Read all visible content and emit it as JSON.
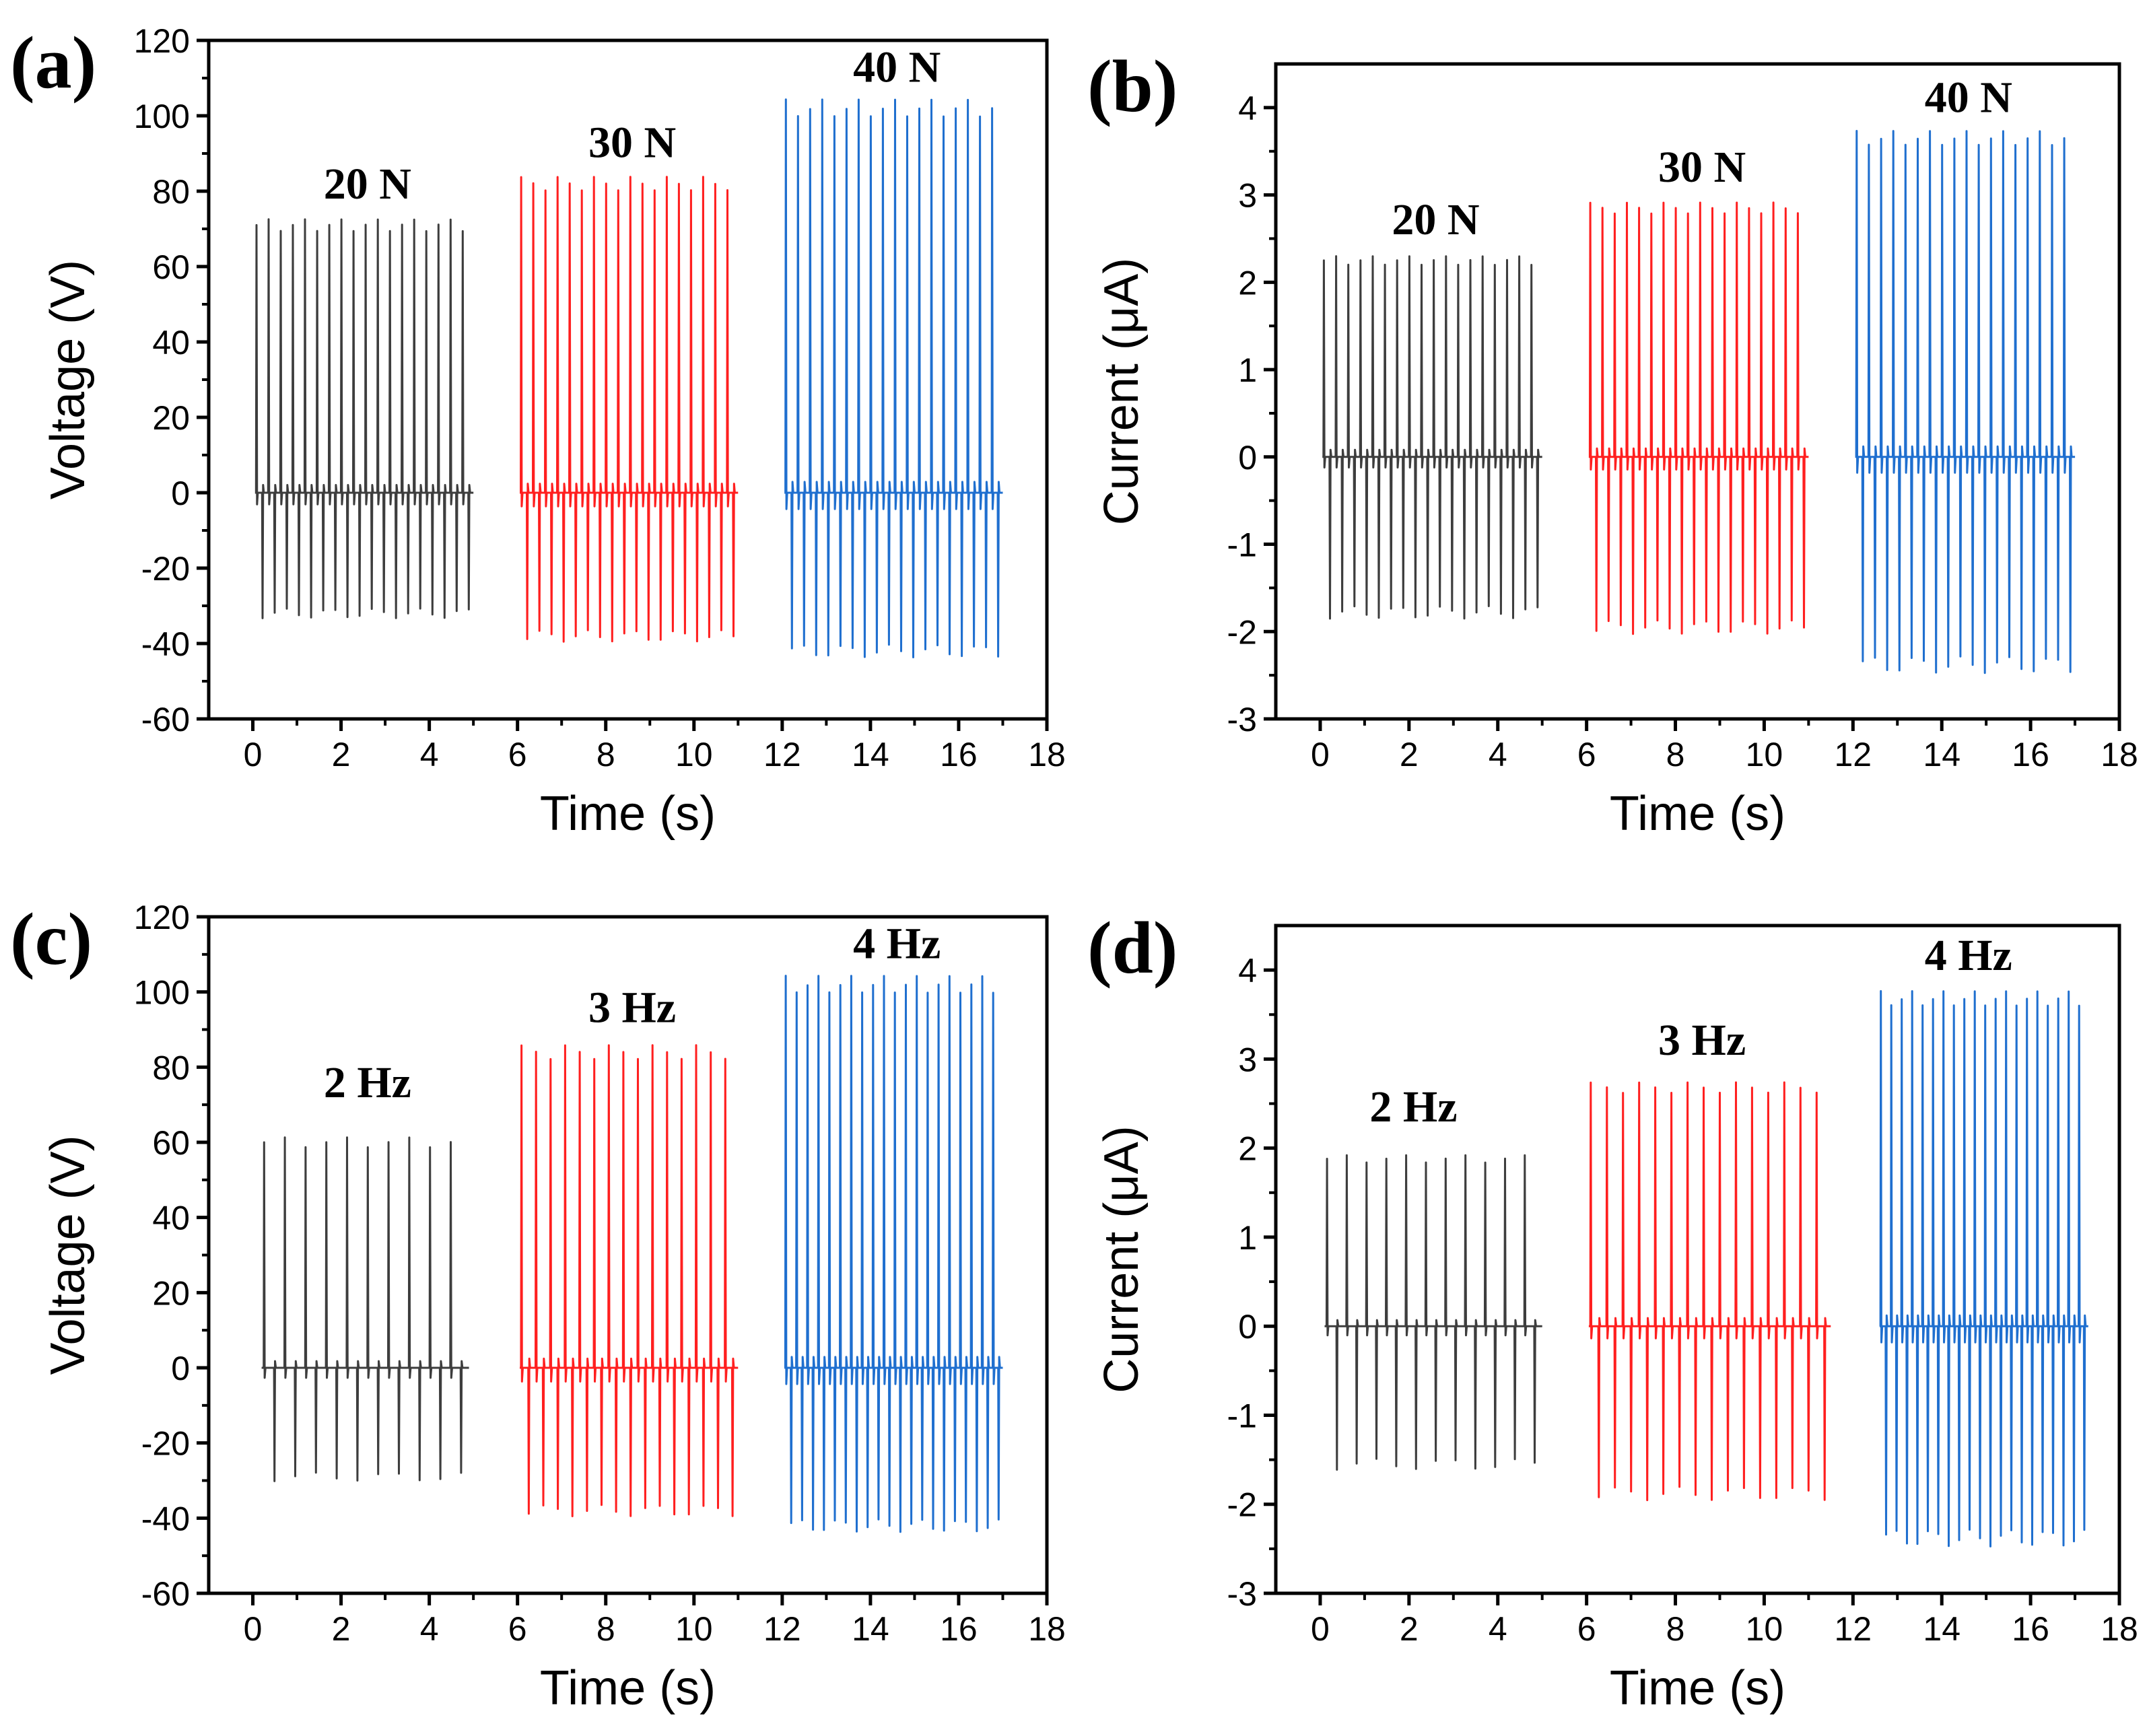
{
  "chart_data": [
    {
      "panel_label": "(a)",
      "type": "line",
      "xlabel": "Time (s)",
      "ylabel": "Voltage (V)",
      "xlim": [
        -1,
        18
      ],
      "ylim": [
        -60,
        120
      ],
      "xticks": [
        0,
        2,
        4,
        6,
        8,
        10,
        12,
        14,
        16,
        18
      ],
      "yticks": [
        -60,
        -40,
        -20,
        0,
        20,
        40,
        60,
        80,
        100,
        120
      ],
      "series": [
        {
          "name": "20 N",
          "color": "#3d3d3d",
          "t_start": 0.05,
          "t_end": 5.0,
          "pulses": 18,
          "peak": 71,
          "trough": -32,
          "peak_label_x": 2.6,
          "peak_label_y": 78
        },
        {
          "name": "30 N",
          "color": "#ff1f1f",
          "t_start": 6.05,
          "t_end": 11.0,
          "pulses": 18,
          "peak": 82,
          "trough": -38,
          "peak_label_x": 8.6,
          "peak_label_y": 89
        },
        {
          "name": "40 N",
          "color": "#1f6fcf",
          "t_start": 12.05,
          "t_end": 17.0,
          "pulses": 18,
          "peak": 102,
          "trough": -42,
          "peak_label_x": 14.6,
          "peak_label_y": 109
        }
      ]
    },
    {
      "panel_label": "(b)",
      "type": "line",
      "xlabel": "Time (s)",
      "ylabel": "Current (μA)",
      "xlim": [
        -1,
        18
      ],
      "ylim": [
        -3,
        4.5
      ],
      "xticks": [
        0,
        2,
        4,
        6,
        8,
        10,
        12,
        14,
        16,
        18
      ],
      "yticks": [
        -3,
        -2,
        -1,
        0,
        1,
        2,
        3,
        4
      ],
      "series": [
        {
          "name": "20 N",
          "color": "#3d3d3d",
          "t_start": 0.05,
          "t_end": 5.0,
          "pulses": 18,
          "peak": 2.25,
          "trough": -1.78,
          "peak_label_x": 2.6,
          "peak_label_y": 2.55
        },
        {
          "name": "30 N",
          "color": "#ff1f1f",
          "t_start": 6.05,
          "t_end": 11.0,
          "pulses": 18,
          "peak": 2.85,
          "trough": -1.95,
          "peak_label_x": 8.6,
          "peak_label_y": 3.15
        },
        {
          "name": "40 N",
          "color": "#1f6fcf",
          "t_start": 12.05,
          "t_end": 17.0,
          "pulses": 18,
          "peak": 3.65,
          "trough": -2.38,
          "peak_label_x": 14.6,
          "peak_label_y": 3.95
        }
      ]
    },
    {
      "panel_label": "(c)",
      "type": "line",
      "xlabel": "Time (s)",
      "ylabel": "Voltage (V)",
      "xlim": [
        -1,
        18
      ],
      "ylim": [
        -60,
        120
      ],
      "xticks": [
        0,
        2,
        4,
        6,
        8,
        10,
        12,
        14,
        16,
        18
      ],
      "yticks": [
        -60,
        -40,
        -20,
        0,
        20,
        40,
        60,
        80,
        100,
        120
      ],
      "series": [
        {
          "name": "2 Hz",
          "color": "#3d3d3d",
          "t_start": 0.2,
          "t_end": 4.9,
          "pulses": 10,
          "peak": 60,
          "trough": -29,
          "peak_label_x": 2.6,
          "peak_label_y": 72
        },
        {
          "name": "3 Hz",
          "color": "#ff1f1f",
          "t_start": 6.05,
          "t_end": 11.0,
          "pulses": 15,
          "peak": 84,
          "trough": -38,
          "peak_label_x": 8.6,
          "peak_label_y": 92
        },
        {
          "name": "4 Hz",
          "color": "#1f6fcf",
          "t_start": 12.05,
          "t_end": 17.0,
          "pulses": 20,
          "peak": 102,
          "trough": -42,
          "peak_label_x": 14.6,
          "peak_label_y": 109
        }
      ]
    },
    {
      "panel_label": "(d)",
      "type": "line",
      "xlabel": "Time (s)",
      "ylabel": "Current (μA)",
      "xlim": [
        -1,
        18
      ],
      "ylim": [
        -3,
        4.5
      ],
      "xticks": [
        0,
        2,
        4,
        6,
        8,
        10,
        12,
        14,
        16,
        18
      ],
      "yticks": [
        -3,
        -2,
        -1,
        0,
        1,
        2,
        3,
        4
      ],
      "series": [
        {
          "name": "2 Hz",
          "color": "#3d3d3d",
          "t_start": 0.1,
          "t_end": 5.0,
          "pulses": 11,
          "peak": 1.88,
          "trough": -1.55,
          "peak_label_x": 2.1,
          "peak_label_y": 2.3
        },
        {
          "name": "3 Hz",
          "color": "#ff1f1f",
          "t_start": 6.05,
          "t_end": 11.5,
          "pulses": 15,
          "peak": 2.68,
          "trough": -1.88,
          "peak_label_x": 8.6,
          "peak_label_y": 3.05
        },
        {
          "name": "4 Hz",
          "color": "#1f6fcf",
          "t_start": 12.6,
          "t_end": 17.3,
          "pulses": 20,
          "peak": 3.68,
          "trough": -2.38,
          "peak_label_x": 14.6,
          "peak_label_y": 4.0
        }
      ]
    }
  ]
}
